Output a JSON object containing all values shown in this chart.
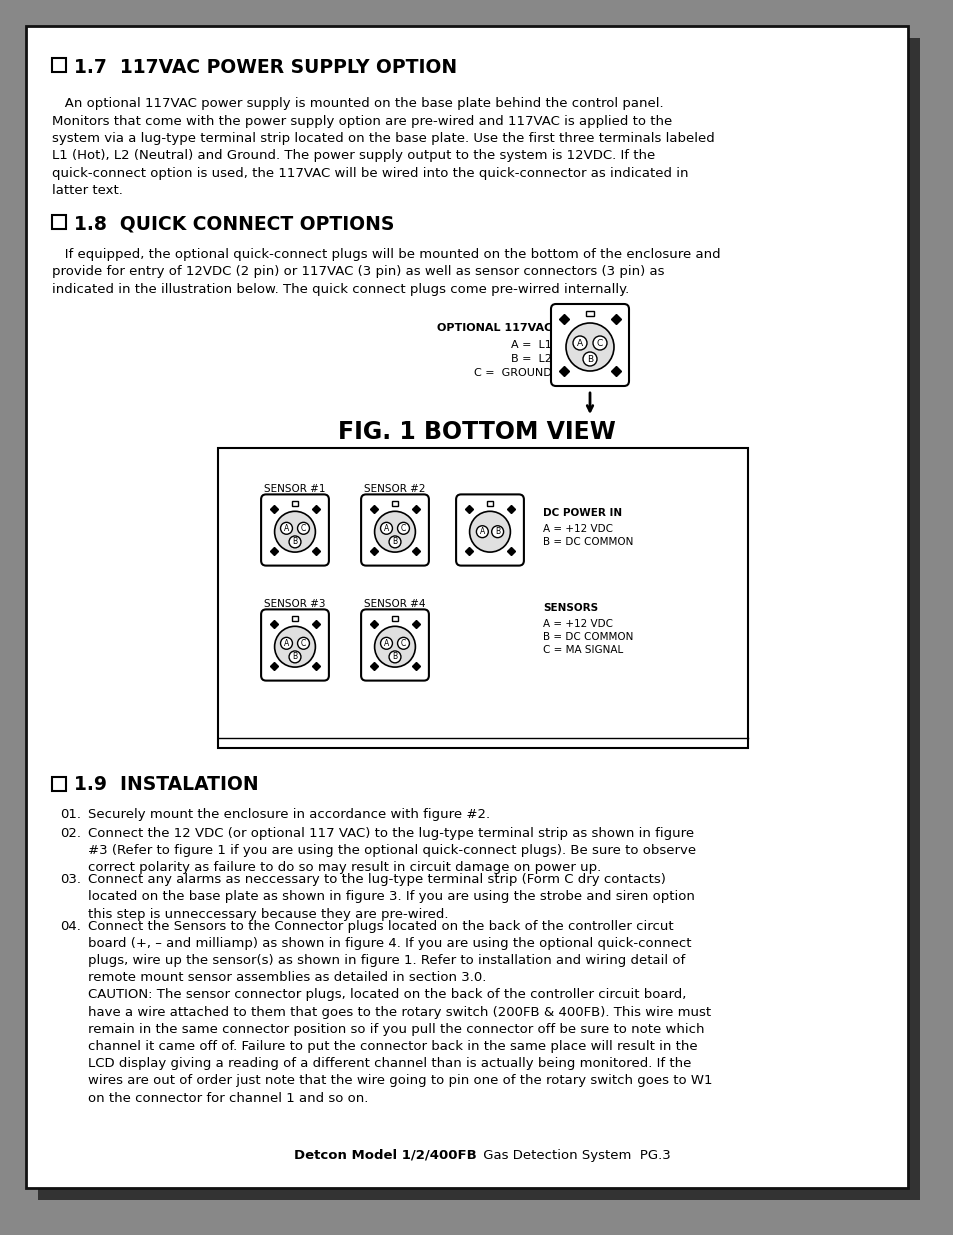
{
  "page_bg": "#ffffff",
  "section_17_title": "1.7  117VAC POWER SUPPLY OPTION",
  "section_18_title": "1.8  QUICK CONNECT OPTIONS",
  "section_19_title": "1.9  INSTALATION",
  "section_17_text": "   An optional 117VAC power supply is mounted on the base plate behind the control panel.\nMonitors that come with the power supply option are pre-wired and 117VAC is applied to the\nsystem via a lug-type terminal strip located on the base plate. Use the first three terminals labeled\nL1 (Hot), L2 (Neutral) and Ground. The power supply output to the system is 12VDC. If the\nquick-connect option is used, the 117VAC will be wired into the quick-connector as indicated in\nlatter text.",
  "section_18_text": "   If equipped, the optional quick-connect plugs will be mounted on the bottom of the enclosure and\nprovide for entry of 12VDC (2 pin) or 117VAC (3 pin) as well as sensor connectors (3 pin) as\nindicated in the illustration below. The quick connect plugs come pre-wirred internally.",
  "fig_title": "FIG. 1 BOTTOM VIEW",
  "optional_label_bold": "OPTIONAL 117VAC",
  "optional_label_rest": "A =  L1\nB =  L2\nC =  GROUND",
  "dc_power_label": "DC POWER IN",
  "dc_power_vals": "A = +12 VDC\nB = DC COMMON",
  "sensors_label": "SENSORS",
  "sensors_vals": "A = +12 VDC\nB = DC COMMON\nC = MA SIGNAL",
  "sensor1_label": "SENSOR #1",
  "sensor2_label": "SENSOR #2",
  "sensor3_label": "SENSOR #3",
  "sensor4_label": "SENSOR #4",
  "install_items": [
    [
      "01.",
      "Securely mount the enclosure in accordance with figure #2."
    ],
    [
      "02.",
      "Connect the 12 VDC (or optional 117 VAC) to the lug-type terminal strip as shown in figure\n#3 (Refer to figure 1 if you are using the optional quick-connect plugs). Be sure to observe\ncorrect polarity as failure to do so may result in circuit damage on power up."
    ],
    [
      "03.",
      "Connect any alarms as neccessary to the lug-type terminal strip (Form C dry contacts)\nlocated on the base plate as shown in figure 3. If you are using the strobe and siren option\nthis step is unneccessary because they are pre-wired."
    ],
    [
      "04.",
      "Connect the Sensors to the Connector plugs located on the back of the controller circut\nboard (+, – and milliamp) as shown in figure 4. If you are using the optional quick-connect\nplugs, wire up the sensor(s) as shown in figure 1. Refer to installation and wiring detail of\nremote mount sensor assemblies as detailed in section 3.0.\nCAUTION: The sensor connector plugs, located on the back of the controller circuit board,\nhave a wire attached to them that goes to the rotary switch (200FB & 400FB). This wire must\nremain in the same connector position so if you pull the connector off be sure to note which\nchannel it came off of. Failure to put the connector back in the same place will result in the\nLCD display giving a reading of a different channel than is actually being monitored. If the\nwires are out of order just note that the wire going to pin one of the rotary switch goes to W1\non the connector for channel 1 and so on."
    ]
  ],
  "footer_bold": "Detcon Model 1/2/400FB",
  "footer_rest": " Gas Detection System  PG.3"
}
